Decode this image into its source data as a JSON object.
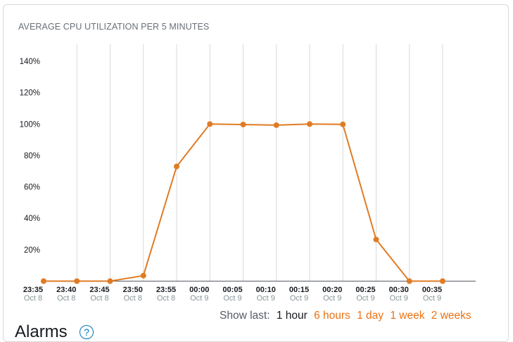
{
  "panel": {
    "title": "AVERAGE CPU UTILIZATION PER 5 MINUTES"
  },
  "colors": {
    "series": "#e07b24",
    "grid": "#d9d9d9",
    "axis": "#545b64",
    "accent": "#ec7211"
  },
  "show_last": {
    "label": "Show last:",
    "options": [
      "1 hour",
      "6 hours",
      "1 day",
      "1 week",
      "2 weeks"
    ],
    "selected": "1 hour"
  },
  "alarms": {
    "title": "Alarms",
    "icon": "info-icon",
    "icon_glyph": "?"
  },
  "chart_data": {
    "type": "line",
    "title": "AVERAGE CPU UTILIZATION PER 5 MINUTES",
    "xlabel": "",
    "ylabel": "",
    "x": [
      {
        "time": "23:35",
        "date": "Oct 8"
      },
      {
        "time": "23:40",
        "date": "Oct 8"
      },
      {
        "time": "23:45",
        "date": "Oct 8"
      },
      {
        "time": "23:50",
        "date": "Oct 8"
      },
      {
        "time": "23:55",
        "date": "Oct 8"
      },
      {
        "time": "00:00",
        "date": "Oct 9"
      },
      {
        "time": "00:05",
        "date": "Oct 9"
      },
      {
        "time": "00:10",
        "date": "Oct 9"
      },
      {
        "time": "00:15",
        "date": "Oct 9"
      },
      {
        "time": "00:20",
        "date": "Oct 9"
      },
      {
        "time": "00:25",
        "date": "Oct 9"
      },
      {
        "time": "00:30",
        "date": "Oct 9"
      },
      {
        "time": "00:35",
        "date": "Oct 9"
      }
    ],
    "values": [
      0,
      0,
      0,
      3.5,
      73,
      100,
      99.7,
      99.3,
      100,
      99.8,
      26.5,
      0,
      0
    ],
    "ylim": [
      0,
      140
    ],
    "yticks": [
      20,
      40,
      60,
      80,
      100,
      120,
      140
    ],
    "ytick_labels": [
      "20%",
      "40%",
      "60%",
      "80%",
      "100%",
      "120%",
      "140%"
    ],
    "grid": "vertical",
    "legend": "none"
  }
}
